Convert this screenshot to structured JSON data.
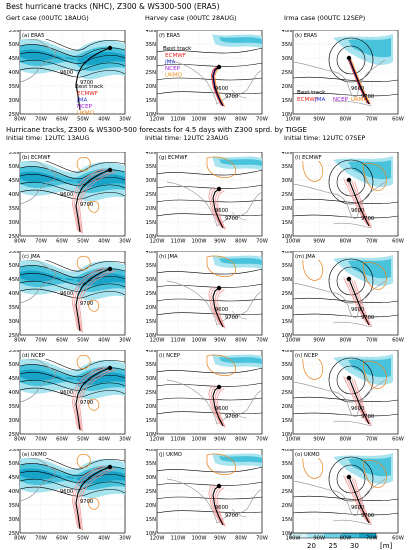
{
  "figure": {
    "title": "Best hurricane tracks (NHC), Z300 & WS300-500 (ERA5)",
    "subtitle_line1": "Hurricane tracks, Z300 & WS300-500 forecasts for 4.5 days with Z300 sprd. by TIGGE",
    "subtitle_line2": [
      "Initial time: 12UTC 13AUG",
      "Initial time: 12UTC 23AUG",
      "Initial time: 12UTC 07SEP"
    ]
  },
  "cases": [
    {
      "head": "Gert case (00UTC 18AUG)",
      "lon": [
        "80W",
        "70W",
        "60W",
        "50W",
        "40W",
        "30W"
      ],
      "lat": [
        "25N",
        "30N",
        "35N",
        "40N",
        "45N",
        "50N",
        "55N"
      ]
    },
    {
      "head": "Harvey case (00UTC 28AUG)",
      "lon": [
        "120W",
        "110W",
        "100W",
        "90W",
        "80W",
        "70W"
      ],
      "lat": [
        "10N",
        "15N",
        "20N",
        "25N",
        "30N",
        "35N",
        "40N"
      ]
    },
    {
      "head": "Irma case (00UTC 12SEP)",
      "lon": [
        "100W",
        "90W",
        "80W",
        "70W",
        "60W"
      ],
      "lat": [
        "10N",
        "15N",
        "20N",
        "25N",
        "30N",
        "35N",
        "40N"
      ]
    }
  ],
  "panels": [
    {
      "id": "a",
      "label": "(a) ERA5",
      "case": 0,
      "row": 0
    },
    {
      "id": "f",
      "label": "(f) ERA5",
      "case": 1,
      "row": 0
    },
    {
      "id": "k",
      "label": "(k) ERA5",
      "case": 2,
      "row": 0
    },
    {
      "id": "b",
      "label": "(b) ECMWF",
      "case": 0,
      "row": 1
    },
    {
      "id": "g",
      "label": "(g) ECMWF",
      "case": 1,
      "row": 1
    },
    {
      "id": "l",
      "label": "(l) ECMWF",
      "case": 2,
      "row": 1
    },
    {
      "id": "c",
      "label": "(c) JMA",
      "case": 0,
      "row": 2
    },
    {
      "id": "h",
      "label": "(h) JMA",
      "case": 1,
      "row": 2
    },
    {
      "id": "m",
      "label": "(m) JMA",
      "case": 2,
      "row": 2
    },
    {
      "id": "d",
      "label": "(d) NCEP",
      "case": 0,
      "row": 3
    },
    {
      "id": "i",
      "label": "(i) NCEP",
      "case": 1,
      "row": 3
    },
    {
      "id": "n",
      "label": "(n) NCEP",
      "case": 2,
      "row": 3
    },
    {
      "id": "e",
      "label": "(e) UKMO",
      "case": 0,
      "row": 4
    },
    {
      "id": "j",
      "label": "(j) UKMO",
      "case": 1,
      "row": 4
    },
    {
      "id": "o",
      "label": "(o) UKMO",
      "case": 2,
      "row": 4
    }
  ],
  "legend": {
    "title": "Best track",
    "items": [
      {
        "name": "ECMWF",
        "color": "#e8231f"
      },
      {
        "name": "JMA",
        "color": "#2a3bd6"
      },
      {
        "name": "NCEP",
        "color": "#9b1fd0"
      },
      {
        "name": "UKMO",
        "color": "#f28c1b"
      }
    ]
  },
  "contour_labels": [
    "9600",
    "9700",
    "9200",
    "9400"
  ],
  "colors": {
    "jet_dark": "#18a3c9",
    "jet_mid": "#49c3dc",
    "jet_light": "#a8e4ef",
    "spread": "#e8821b",
    "track_best": "#000000",
    "ens": "#f08a8a",
    "land": "#9a9a9a"
  },
  "chart_data": {
    "type": "map",
    "colorbar": {
      "ticks": [
        20,
        25,
        30
      ],
      "unit": "[m]",
      "colors": [
        "#d6f2f7",
        "#a8e4ef",
        "#6fd1e4",
        "#3fbcd8",
        "#18a3c9"
      ]
    },
    "tracks": {
      "gert_best": {
        "lon": [
          -69,
          -70,
          -71,
          -70.5,
          -68,
          -64,
          -58,
          -53
        ],
        "lat": [
          27,
          30,
          33,
          35,
          37,
          39,
          41,
          42.5
        ]
      },
      "harvey_best": {
        "lon": [
          -93,
          -94.5,
          -96,
          -97,
          -96.5,
          -95.5
        ],
        "lat": [
          21,
          23,
          25.5,
          28,
          29.3,
          29.8
        ]
      },
      "irma_best": {
        "lon": [
          -77,
          -79,
          -81,
          -81.8,
          -82.4,
          -83.5
        ],
        "lat": [
          22,
          23,
          24.5,
          26,
          28,
          30.5
        ]
      }
    }
  }
}
